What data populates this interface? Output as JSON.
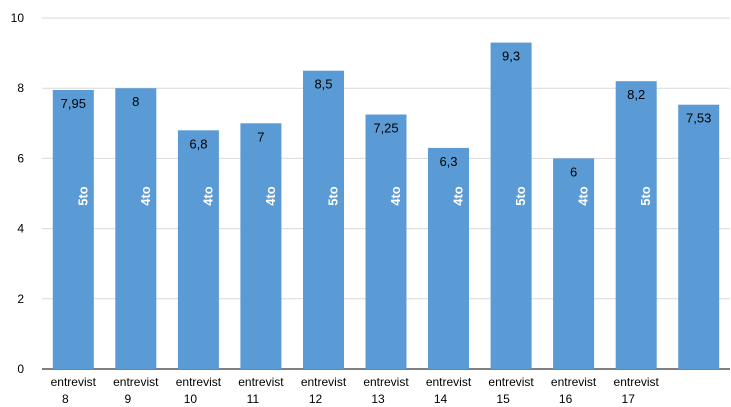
{
  "chart_data": {
    "type": "bar",
    "title": "",
    "xlabel": "",
    "ylabel": "",
    "ylim": [
      0,
      10
    ],
    "y_ticks": [
      0,
      2,
      4,
      6,
      8,
      10
    ],
    "grid": true,
    "categories": [
      [
        "entrevist",
        "8"
      ],
      [
        "entrevist",
        "9"
      ],
      [
        "entrevist",
        "10"
      ],
      [
        "entrevist",
        "11"
      ],
      [
        "entrevist",
        "12"
      ],
      [
        "entrevist",
        "13"
      ],
      [
        "entrevist",
        "14"
      ],
      [
        "entrevist",
        "15"
      ],
      [
        "entrevist",
        "16"
      ],
      [
        "entrevist",
        "17"
      ],
      [
        "",
        ""
      ]
    ],
    "values": [
      7.95,
      8,
      6.8,
      7,
      8.5,
      7.25,
      6.3,
      9.3,
      6,
      8.2,
      7.53
    ],
    "data_labels": [
      "7,95",
      "8",
      "6,8",
      "7",
      "8,5",
      "7,25",
      "6,3",
      "9,3",
      "6",
      "8,2",
      "7,53"
    ],
    "inner_labels": [
      "5to",
      "4to",
      "4to",
      "4to",
      "5to",
      "4to",
      "4to",
      "5to",
      "4to",
      "5to",
      ""
    ],
    "colors": {
      "bar": "#5b9bd5",
      "grid": "#d9d9d9",
      "axis": "#000000"
    }
  }
}
